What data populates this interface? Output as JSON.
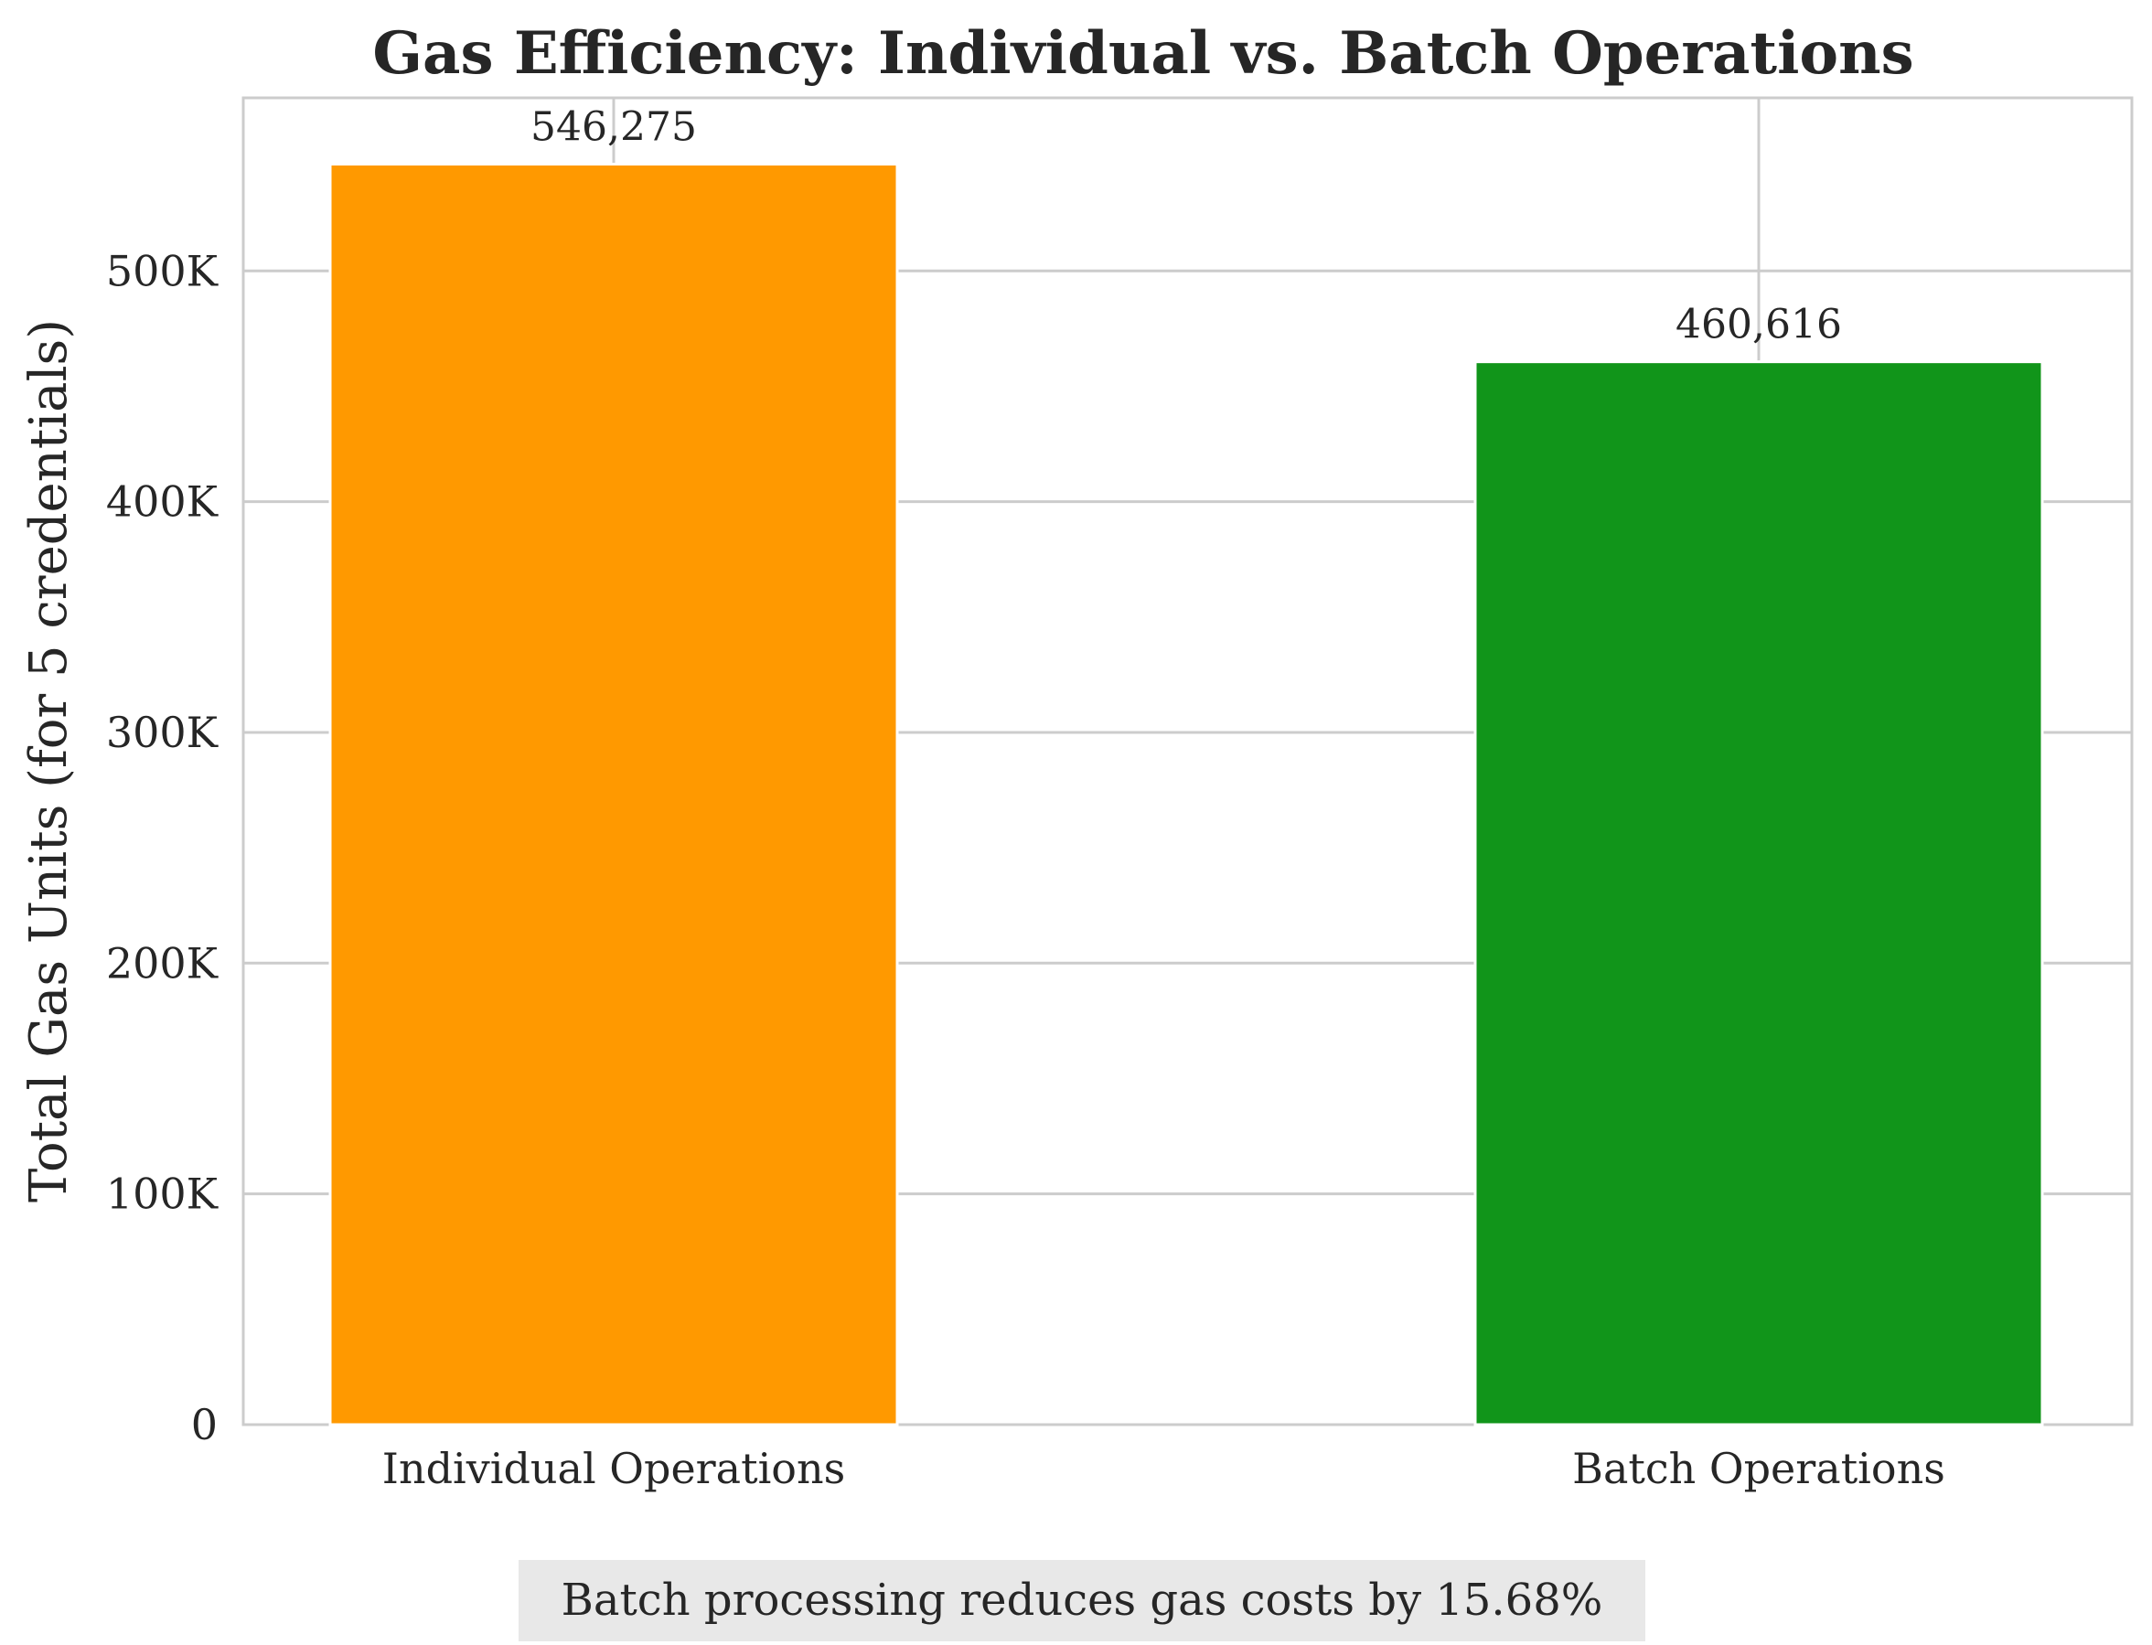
{
  "chart_data": {
    "type": "bar",
    "title": "Gas Efficiency: Individual vs. Batch Operations",
    "xlabel": "",
    "ylabel": "Total Gas Units (for 5 credentials)",
    "categories": [
      "Individual Operations",
      "Batch Operations"
    ],
    "values": [
      546275,
      460616
    ],
    "value_labels": [
      "546,275",
      "460,616"
    ],
    "colors": [
      "#ff9900",
      "#11951a"
    ],
    "ylim": [
      0,
      575000
    ],
    "yticks": [
      0,
      100000,
      200000,
      300000,
      400000,
      500000
    ],
    "ytick_labels": [
      "0",
      "100K",
      "200K",
      "300K",
      "400K",
      "500K"
    ],
    "grid": true,
    "annotation": "Batch processing reduces gas costs by 15.68%"
  }
}
